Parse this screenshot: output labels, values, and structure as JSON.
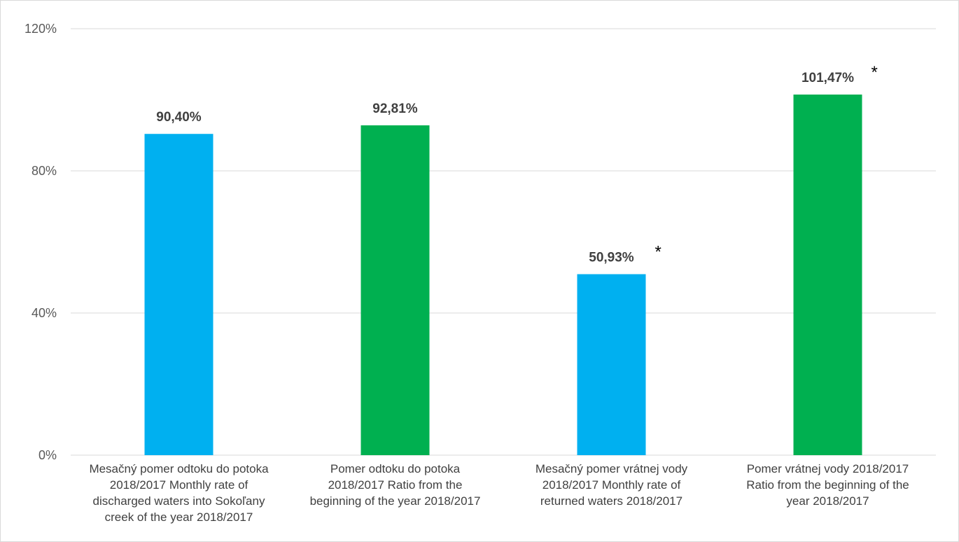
{
  "chart_data": {
    "type": "bar",
    "categories": [
      "Mesačný pomer odtoku do potoka\n2018/2017     Monthly rate of\ndischarged waters into Sokoľany\ncreek of the year 2018/2017",
      "Pomer odtoku do potoka\n2018/2017 Ratio from the\nbeginning of the year 2018/2017",
      "Mesačný pomer vrátnej vody\n2018/2017 Monthly rate of\nreturned waters 2018/2017",
      "Pomer vrátnej vody   2018/2017\nRatio from the beginning of the\nyear 2018/2017"
    ],
    "values": [
      90.4,
      92.81,
      50.93,
      101.47
    ],
    "data_labels": [
      "90,40%",
      "92,81%",
      "50,93%",
      "101,47%"
    ],
    "bar_colors": [
      "#00b0f0",
      "#00b050",
      "#00b0f0",
      "#00b050"
    ],
    "asterisks": [
      "",
      "",
      "*",
      "*"
    ],
    "ylim": [
      0,
      120
    ],
    "y_ticks": [
      0,
      40,
      80,
      120
    ],
    "y_tick_labels": [
      "0%",
      "40%",
      "80%",
      "120%"
    ],
    "grid": true,
    "gridline_color": "#d9d9d9",
    "title": "",
    "xlabel": "",
    "ylabel": ""
  }
}
